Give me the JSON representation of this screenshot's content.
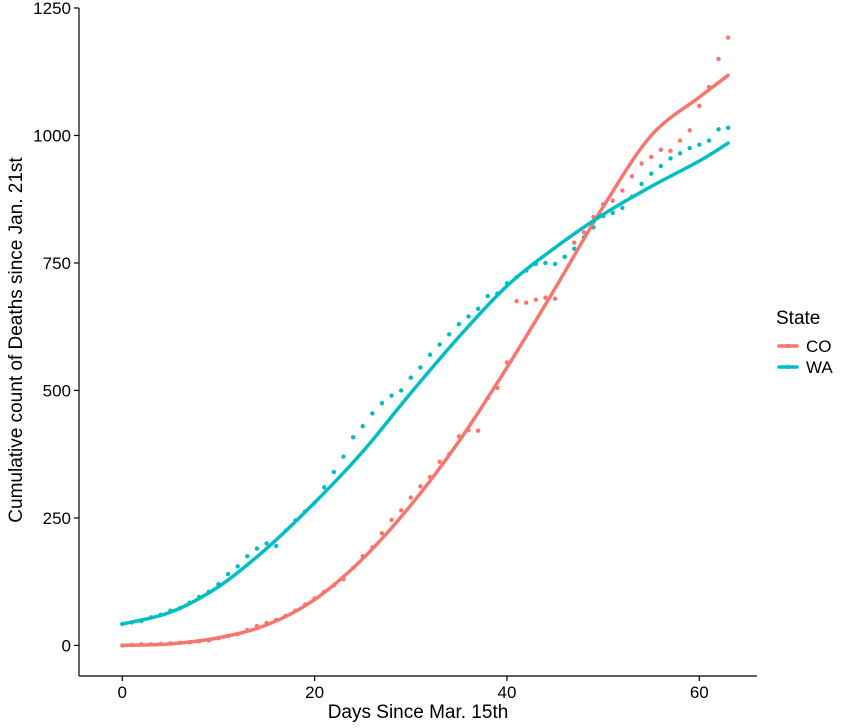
{
  "chart_data": {
    "type": "scatter",
    "xlabel": "Days Since Mar. 15th",
    "ylabel": "Cumulative count of Deaths since Jan. 21st",
    "xlim": [
      -4.5,
      66
    ],
    "ylim": [
      -60,
      1250
    ],
    "x_ticks": [
      0,
      20,
      40,
      60
    ],
    "y_ticks": [
      0,
      250,
      500,
      750,
      1000,
      1250
    ],
    "grid": false,
    "legend": {
      "title": "State",
      "position": "right"
    },
    "series": [
      {
        "name": "CO",
        "color": "#F8766D",
        "points": [
          [
            0,
            0
          ],
          [
            1,
            1
          ],
          [
            2,
            2
          ],
          [
            3,
            2
          ],
          [
            4,
            3
          ],
          [
            5,
            4
          ],
          [
            6,
            5
          ],
          [
            7,
            6
          ],
          [
            8,
            8
          ],
          [
            9,
            10
          ],
          [
            10,
            14
          ],
          [
            11,
            18
          ],
          [
            12,
            22
          ],
          [
            13,
            30
          ],
          [
            14,
            38
          ],
          [
            15,
            44
          ],
          [
            16,
            50
          ],
          [
            17,
            58
          ],
          [
            18,
            68
          ],
          [
            19,
            80
          ],
          [
            20,
            92
          ],
          [
            21,
            105
          ],
          [
            22,
            118
          ],
          [
            23,
            130
          ],
          [
            24,
            152
          ],
          [
            25,
            175
          ],
          [
            26,
            192
          ],
          [
            27,
            220
          ],
          [
            28,
            246
          ],
          [
            29,
            265
          ],
          [
            30,
            290
          ],
          [
            31,
            312
          ],
          [
            32,
            330
          ],
          [
            33,
            360
          ],
          [
            34,
            375
          ],
          [
            35,
            410
          ],
          [
            36,
            422
          ],
          [
            37,
            421
          ],
          [
            38,
            485
          ],
          [
            39,
            505
          ],
          [
            40,
            555
          ],
          [
            41,
            675
          ],
          [
            42,
            672
          ],
          [
            43,
            678
          ],
          [
            44,
            682
          ],
          [
            45,
            680
          ],
          [
            46,
            762
          ],
          [
            47,
            790
          ],
          [
            48,
            810
          ],
          [
            49,
            840
          ],
          [
            50,
            865
          ],
          [
            51,
            872
          ],
          [
            52,
            892
          ],
          [
            53,
            920
          ],
          [
            54,
            945
          ],
          [
            55,
            958
          ],
          [
            56,
            972
          ],
          [
            57,
            970
          ],
          [
            58,
            990
          ],
          [
            59,
            1010
          ],
          [
            60,
            1058
          ],
          [
            61,
            1095
          ],
          [
            62,
            1150
          ],
          [
            63,
            1192
          ]
        ],
        "trend": [
          [
            0,
            0
          ],
          [
            5,
            3
          ],
          [
            10,
            15
          ],
          [
            15,
            40
          ],
          [
            20,
            90
          ],
          [
            25,
            170
          ],
          [
            30,
            275
          ],
          [
            35,
            400
          ],
          [
            40,
            545
          ],
          [
            45,
            700
          ],
          [
            50,
            860
          ],
          [
            55,
            1000
          ],
          [
            60,
            1075
          ],
          [
            63,
            1118
          ]
        ]
      },
      {
        "name": "WA",
        "color": "#00BFC4",
        "points": [
          [
            0,
            42
          ],
          [
            1,
            45
          ],
          [
            2,
            48
          ],
          [
            3,
            55
          ],
          [
            4,
            60
          ],
          [
            5,
            68
          ],
          [
            6,
            73
          ],
          [
            7,
            84
          ],
          [
            8,
            95
          ],
          [
            9,
            105
          ],
          [
            10,
            120
          ],
          [
            11,
            140
          ],
          [
            12,
            155
          ],
          [
            13,
            175
          ],
          [
            14,
            190
          ],
          [
            15,
            200
          ],
          [
            16,
            195
          ],
          [
            17,
            225
          ],
          [
            18,
            245
          ],
          [
            19,
            262
          ],
          [
            20,
            280
          ],
          [
            21,
            310
          ],
          [
            22,
            340
          ],
          [
            23,
            370
          ],
          [
            24,
            408
          ],
          [
            25,
            430
          ],
          [
            26,
            455
          ],
          [
            27,
            475
          ],
          [
            28,
            490
          ],
          [
            29,
            500
          ],
          [
            30,
            525
          ],
          [
            31,
            545
          ],
          [
            32,
            570
          ],
          [
            33,
            590
          ],
          [
            34,
            610
          ],
          [
            35,
            630
          ],
          [
            36,
            645
          ],
          [
            37,
            660
          ],
          [
            38,
            685
          ],
          [
            39,
            690
          ],
          [
            40,
            710
          ],
          [
            41,
            722
          ],
          [
            42,
            735
          ],
          [
            43,
            748
          ],
          [
            44,
            750
          ],
          [
            45,
            748
          ],
          [
            46,
            762
          ],
          [
            47,
            778
          ],
          [
            48,
            800
          ],
          [
            49,
            820
          ],
          [
            50,
            842
          ],
          [
            51,
            848
          ],
          [
            52,
            858
          ],
          [
            53,
            880
          ],
          [
            54,
            905
          ],
          [
            55,
            925
          ],
          [
            56,
            940
          ],
          [
            57,
            955
          ],
          [
            58,
            965
          ],
          [
            59,
            975
          ],
          [
            60,
            982
          ],
          [
            61,
            990
          ],
          [
            62,
            1012
          ],
          [
            63,
            1015
          ]
        ],
        "trend": [
          [
            0,
            42
          ],
          [
            5,
            65
          ],
          [
            10,
            115
          ],
          [
            15,
            190
          ],
          [
            20,
            280
          ],
          [
            25,
            380
          ],
          [
            30,
            495
          ],
          [
            35,
            605
          ],
          [
            40,
            705
          ],
          [
            45,
            780
          ],
          [
            50,
            845
          ],
          [
            55,
            900
          ],
          [
            60,
            950
          ],
          [
            63,
            985
          ]
        ]
      }
    ]
  }
}
